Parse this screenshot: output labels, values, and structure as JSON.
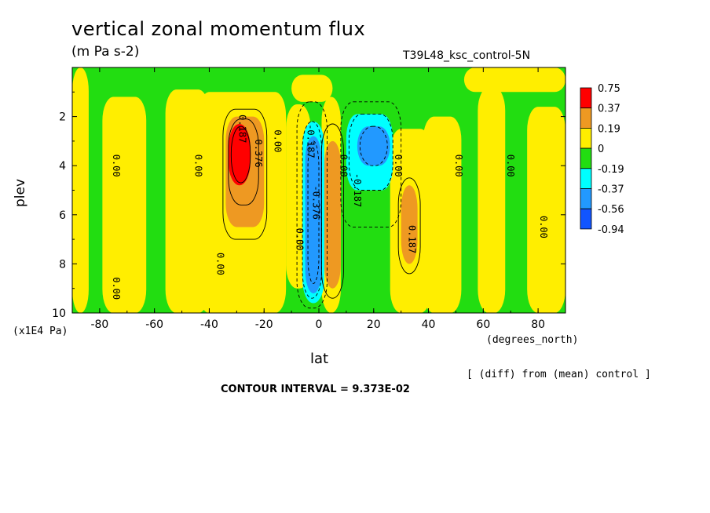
{
  "chart_data": {
    "type": "heatmap",
    "title": "vertical zonal momentum flux",
    "units": "(m Pa s-2)",
    "run_label": "T39L48_ksc_control-5N",
    "xlabel": "lat",
    "x_units": "(degrees_north)",
    "ylabel": "plev",
    "y_units": "(x1E4 Pa)",
    "xlim": [
      -90,
      90
    ],
    "ylim": [
      10,
      0
    ],
    "x_ticks": [
      -80,
      -60,
      -40,
      -20,
      0,
      20,
      40,
      60,
      80
    ],
    "x_tick_labels": [
      "-80",
      "-60",
      "-40",
      "-20",
      "0",
      "20",
      "40",
      "60",
      "80"
    ],
    "y_ticks": [
      2,
      4,
      6,
      8,
      10
    ],
    "y_tick_labels": [
      "2",
      "4",
      "6",
      "8",
      "10"
    ],
    "diff_note": "[ (diff) from (mean) control ]",
    "contour_interval": "CONTOUR INTERVAL = 9.373E-02",
    "legend": {
      "placement": "right",
      "labels": [
        "0.75",
        "0.37",
        "0.19",
        "0",
        "-0.19",
        "-0.37",
        "-0.56",
        "-0.94"
      ],
      "colors": [
        "#ff0000",
        "#ee9922",
        "#ffee00",
        "#22dd11",
        "#00ffff",
        "#2299ff",
        "#1155ff"
      ]
    },
    "background_color": "#22dd11",
    "regions": [
      {
        "name": "pos-band-1",
        "level": "0.19",
        "color": "#ffee00",
        "lat": [
          -90,
          -84
        ],
        "plev": [
          0,
          10
        ]
      },
      {
        "name": "pos-band-2",
        "level": "0.19",
        "color": "#ffee00",
        "lat": [
          -79,
          -63
        ],
        "plev": [
          1.2,
          10
        ]
      },
      {
        "name": "pos-band-3",
        "level": "0.19",
        "color": "#ffee00",
        "lat": [
          -56,
          -40
        ],
        "plev": [
          0.9,
          10
        ]
      },
      {
        "name": "pos-band-4",
        "level": "0.19",
        "color": "#ffee00",
        "lat": [
          -44,
          -12
        ],
        "plev": [
          1.0,
          10
        ]
      },
      {
        "name": "pos-band-5",
        "level": "0.19",
        "color": "#ffee00",
        "lat": [
          -12,
          -3
        ],
        "plev": [
          1.5,
          9
        ]
      },
      {
        "name": "pos-band-6",
        "level": "0.19",
        "color": "#ffee00",
        "lat": [
          1,
          8
        ],
        "plev": [
          1.2,
          10
        ]
      },
      {
        "name": "pos-band-7",
        "level": "0.19",
        "color": "#ffee00",
        "lat": [
          26,
          41
        ],
        "plev": [
          2.5,
          10
        ]
      },
      {
        "name": "pos-band-8",
        "level": "0.19",
        "color": "#ffee00",
        "lat": [
          38,
          52
        ],
        "plev": [
          2.0,
          10
        ]
      },
      {
        "name": "pos-band-9",
        "level": "0.19",
        "color": "#ffee00",
        "lat": [
          58,
          68
        ],
        "plev": [
          0.8,
          10
        ]
      },
      {
        "name": "pos-band-10",
        "level": "0.19",
        "color": "#ffee00",
        "lat": [
          76,
          90
        ],
        "plev": [
          1.6,
          10
        ]
      },
      {
        "name": "pos-top-strip",
        "level": "0.19",
        "color": "#ffee00",
        "lat": [
          -10,
          5
        ],
        "plev": [
          0.3,
          1.4
        ]
      },
      {
        "name": "pos-top-strip-2",
        "level": "0.19",
        "color": "#ffee00",
        "lat": [
          53,
          90
        ],
        "plev": [
          0,
          1.0
        ]
      },
      {
        "name": "orange-core-sh",
        "level": "0.37",
        "color": "#ee9922",
        "lat": [
          -34,
          -20
        ],
        "plev": [
          2.0,
          6.5
        ]
      },
      {
        "name": "orange-eq",
        "level": "0.37",
        "color": "#ee9922",
        "lat": [
          2,
          8
        ],
        "plev": [
          3.0,
          9.0
        ]
      },
      {
        "name": "orange-nh",
        "level": "0.37",
        "color": "#ee9922",
        "lat": [
          30,
          36
        ],
        "plev": [
          4.8,
          8.0
        ]
      },
      {
        "name": "red-core",
        "level": "0.75",
        "color": "#ff0000",
        "lat": [
          -33,
          -25
        ],
        "plev": [
          2.3,
          4.8
        ]
      },
      {
        "name": "cyan-eq",
        "level": "-0.37",
        "color": "#00ffff",
        "lat": [
          -6,
          2
        ],
        "plev": [
          2.2,
          9.6
        ]
      },
      {
        "name": "blue-eq",
        "level": "-0.56",
        "color": "#2299ff",
        "lat": [
          -5,
          1
        ],
        "plev": [
          2.8,
          9.2
        ]
      },
      {
        "name": "cyan-nh",
        "level": "-0.37",
        "color": "#00ffff",
        "lat": [
          10,
          27
        ],
        "plev": [
          1.9,
          5.0
        ]
      },
      {
        "name": "blue-nh",
        "level": "-0.56",
        "color": "#2299ff",
        "lat": [
          14,
          26
        ],
        "plev": [
          2.4,
          4.0
        ]
      }
    ],
    "contour_labels": [
      {
        "text": "0.00",
        "lat": -74,
        "plev": 4.0
      },
      {
        "text": "0.00",
        "lat": -74,
        "plev": 9.0
      },
      {
        "text": "0.00",
        "lat": -44,
        "plev": 4.0
      },
      {
        "text": "0.00",
        "lat": -36,
        "plev": 8.0
      },
      {
        "text": "0.187",
        "lat": -28,
        "plev": 2.5
      },
      {
        "text": "0.376",
        "lat": -22,
        "plev": 3.5
      },
      {
        "text": "0.00",
        "lat": -15,
        "plev": 3.0
      },
      {
        "text": "0.00",
        "lat": -7,
        "plev": 7.0
      },
      {
        "text": "-0.187",
        "lat": -3,
        "plev": 3.0
      },
      {
        "text": "-0.376",
        "lat": -1,
        "plev": 5.5
      },
      {
        "text": "0.00",
        "lat": 9,
        "plev": 4.0
      },
      {
        "text": "-0.187",
        "lat": 14,
        "plev": 5.0
      },
      {
        "text": "0.00",
        "lat": 29,
        "plev": 4.0
      },
      {
        "text": "0.187",
        "lat": 34,
        "plev": 7.0
      },
      {
        "text": "0.00",
        "lat": 51,
        "plev": 4.0
      },
      {
        "text": "0.00",
        "lat": 70,
        "plev": 4.0
      },
      {
        "text": "0.00",
        "lat": 82,
        "plev": 6.5
      }
    ]
  }
}
